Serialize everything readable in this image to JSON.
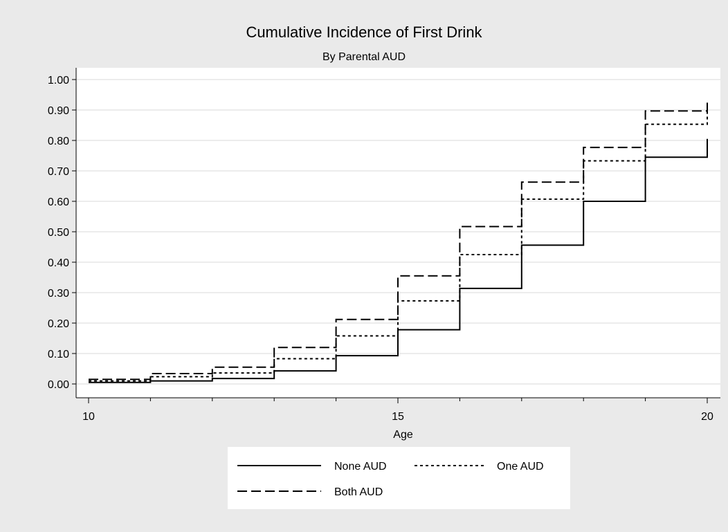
{
  "chart_data": {
    "type": "line",
    "step": true,
    "title": "Cumulative Incidence of First Drink",
    "subtitle": "By Parental AUD",
    "xlabel": "Age",
    "ylabel": "",
    "xlim": [
      10,
      20
    ],
    "ylim": [
      0,
      1
    ],
    "grid": true,
    "legend_position": "bottom",
    "x": [
      10,
      11,
      12,
      13,
      14,
      15,
      16,
      17,
      18,
      19,
      20
    ],
    "x_ticks_labeled": [
      "10",
      "15",
      "20"
    ],
    "y_ticks": [
      "0.00",
      "0.10",
      "0.20",
      "0.30",
      "0.40",
      "0.50",
      "0.60",
      "0.70",
      "0.80",
      "0.90",
      "1.00"
    ],
    "series": [
      {
        "name": "None AUD",
        "style": "solid",
        "values": [
          0.005,
          0.01,
          0.018,
          0.043,
          0.093,
          0.178,
          0.314,
          0.456,
          0.6,
          0.745,
          0.805
        ]
      },
      {
        "name": "One AUD",
        "style": "dotted",
        "values": [
          0.01,
          0.024,
          0.036,
          0.083,
          0.158,
          0.273,
          0.425,
          0.607,
          0.733,
          0.853,
          0.907
        ]
      },
      {
        "name": "Both AUD",
        "style": "dashed",
        "values": [
          0.015,
          0.034,
          0.055,
          0.12,
          0.212,
          0.355,
          0.517,
          0.663,
          0.777,
          0.897,
          0.925
        ]
      }
    ]
  }
}
